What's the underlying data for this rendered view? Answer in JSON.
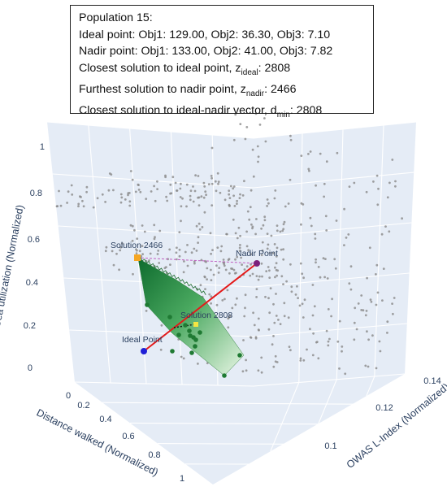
{
  "info": {
    "population": "Population 15:",
    "ideal_line": "Ideal point: Obj1: 129.00, Obj2: 36.30, Obj3: 7.10",
    "nadir_line": "Nadir point: Obj1: 133.00, Obj2: 41.00, Obj3: 7.82",
    "closest_ideal_prefix": "Closest solution to ideal point, z",
    "closest_ideal_sub": "ideal",
    "closest_ideal_value": ": 2808",
    "furthest_nadir_prefix": "Furthest solution to nadir point, z",
    "furthest_nadir_sub": "nadir",
    "furthest_nadir_value": ": 2466",
    "closest_vector_prefix": "Closest solution to ideal-nadir vector, d",
    "closest_vector_sub": "min",
    "closest_vector_value": ": 2808"
  },
  "chart_data": {
    "type": "scatter3d",
    "axes": {
      "x": {
        "label": "Distance walked (Normalized)",
        "ticks": [
          "0",
          "0.2",
          "0.4",
          "0.6",
          "0.8",
          "1"
        ]
      },
      "y": {
        "label": "OWAS L-Index (Normalized)",
        "ticks": [
          "0.1",
          "0.12",
          "0.14"
        ]
      },
      "z": {
        "label": "Area utilization (Normalized)",
        "ticks": [
          "0",
          "0.2",
          "0.4",
          "0.6",
          "0.8",
          "1"
        ]
      }
    },
    "grid": true,
    "colors": {
      "scene_bg": "#e5ecf6",
      "cloud": "#8a8a8a",
      "pareto": "#1f7a33",
      "ideal": "#1f1fd6",
      "nadir": "#7b1f7b",
      "vector": "#e41a1a",
      "solution_2466": "#f5a623",
      "solution_2808": "#f5e642"
    },
    "labels": {
      "ideal": "Ideal Point",
      "nadir": "Nadir Point",
      "furthest": "Solution 2466",
      "closest": "Solution 2808"
    }
  }
}
